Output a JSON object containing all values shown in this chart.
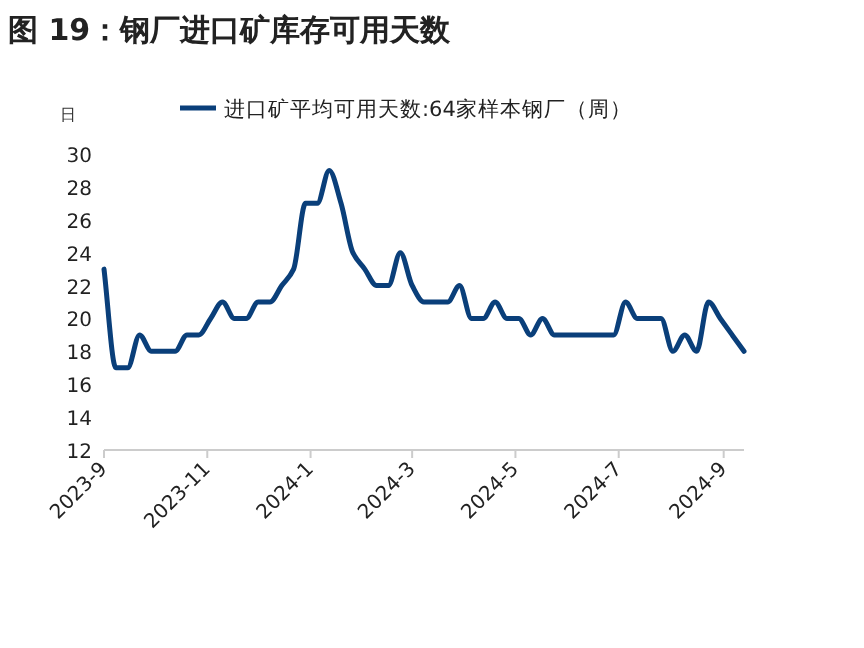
{
  "chart_data": {
    "type": "line",
    "title": "图 19：钢厂进口矿库存可用天数",
    "ylabel": "日",
    "x": [
      "2023-09-01",
      "2023-09-08",
      "2023-09-15",
      "2023-09-22",
      "2023-09-29",
      "2023-10-06",
      "2023-10-13",
      "2023-10-20",
      "2023-10-27",
      "2023-11-03",
      "2023-11-10",
      "2023-11-17",
      "2023-11-24",
      "2023-12-01",
      "2023-12-08",
      "2023-12-15",
      "2023-12-22",
      "2023-12-29",
      "2024-01-05",
      "2024-01-12",
      "2024-01-19",
      "2024-01-26",
      "2024-02-02",
      "2024-02-09",
      "2024-02-16",
      "2024-02-23",
      "2024-03-01",
      "2024-03-08",
      "2024-03-15",
      "2024-03-22",
      "2024-03-29",
      "2024-04-05",
      "2024-04-12",
      "2024-04-19",
      "2024-04-26",
      "2024-05-03",
      "2024-05-10",
      "2024-05-17",
      "2024-05-24",
      "2024-05-31",
      "2024-06-07",
      "2024-06-14",
      "2024-06-21",
      "2024-06-28",
      "2024-07-05",
      "2024-07-12",
      "2024-07-19",
      "2024-07-26",
      "2024-08-02",
      "2024-08-09",
      "2024-08-16",
      "2024-08-23",
      "2024-08-30",
      "2024-09-06",
      "2024-09-13"
    ],
    "series": [
      {
        "name": "进口矿平均可用天数:64家样本钢厂（周）",
        "color": "#0a3f7a",
        "values": [
          23,
          17,
          17,
          19,
          18,
          18,
          18,
          19,
          19,
          20,
          21,
          20,
          20,
          21,
          21,
          22,
          23,
          27,
          27,
          29,
          27,
          24,
          23,
          22,
          22,
          24,
          22,
          21,
          21,
          21,
          22,
          20,
          20,
          21,
          20,
          20,
          19,
          20,
          19,
          19,
          19,
          19,
          19,
          19,
          21,
          20,
          20,
          20,
          18,
          19,
          18,
          21,
          20,
          19,
          18
        ]
      }
    ],
    "xlim": [
      "2023-09-01",
      "2024-09-13"
    ],
    "xticks": [
      {
        "value": "2023-09-01",
        "label": "2023-9"
      },
      {
        "value": "2023-11-01",
        "label": "2023-11"
      },
      {
        "value": "2024-01-01",
        "label": "2024-1"
      },
      {
        "value": "2024-03-01",
        "label": "2024-3"
      },
      {
        "value": "2024-05-01",
        "label": "2024-5"
      },
      {
        "value": "2024-07-01",
        "label": "2024-7"
      },
      {
        "value": "2024-09-01",
        "label": "2024-9"
      }
    ],
    "ylim": [
      12,
      30
    ],
    "yticks": [
      12,
      14,
      16,
      18,
      20,
      22,
      24,
      26,
      28,
      30
    ],
    "grid": false,
    "legend": "top",
    "marker": "none",
    "line_style": "solid"
  }
}
